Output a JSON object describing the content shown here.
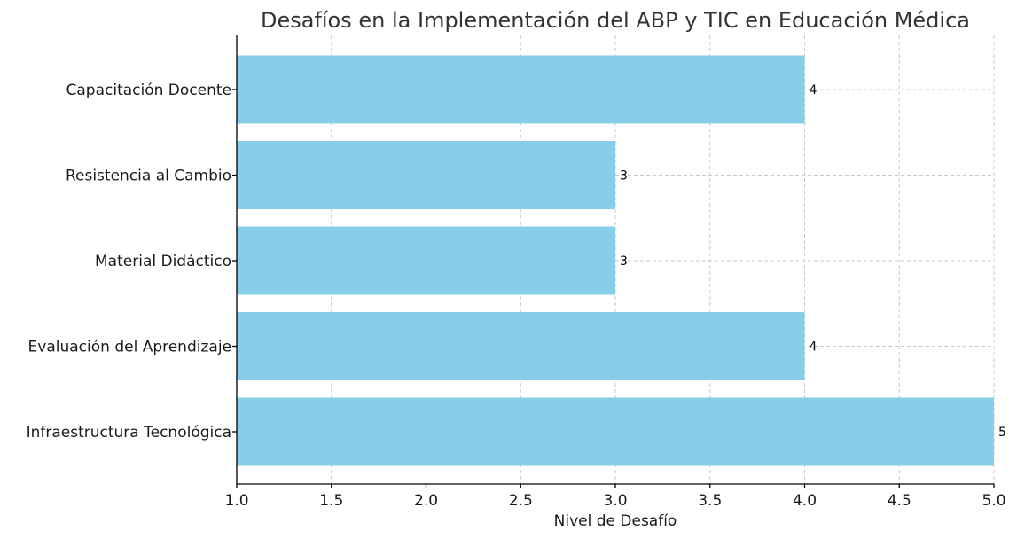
{
  "chart_data": {
    "type": "bar",
    "orientation": "horizontal",
    "title": "Desafíos en la Implementación del ABP y TIC en Educación Médica",
    "xlabel": "Nivel de Desafío",
    "ylabel": "",
    "categories": [
      "Capacitación Docente",
      "Resistencia al Cambio",
      "Material Didáctico",
      "Evaluación del Aprendizaje",
      "Infraestructura Tecnológica"
    ],
    "values": [
      4,
      3,
      3,
      4,
      5
    ],
    "value_labels": [
      "4",
      "3",
      "3",
      "4",
      "5"
    ],
    "xlim": [
      1.0,
      5.0
    ],
    "xticks": [
      "1.0",
      "1.5",
      "2.0",
      "2.5",
      "3.0",
      "3.5",
      "4.0",
      "4.5",
      "5.0"
    ],
    "grid": true,
    "bar_color": "#87CEEB"
  }
}
